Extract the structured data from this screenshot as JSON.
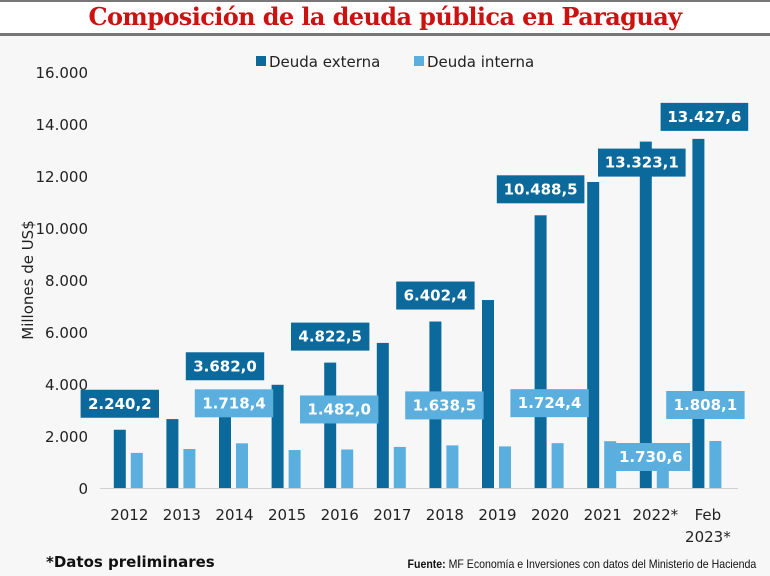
{
  "header": {
    "title": "Composición de la deuda pública en Paraguay"
  },
  "colors": {
    "external": "#0b6a9b",
    "internal": "#5aafdf",
    "title": "#cc1111"
  },
  "chart_data": {
    "type": "bar",
    "title": "Composición de la deuda pública en Paraguay",
    "xlabel": "",
    "ylabel": "Millones de US$",
    "ylim": [
      0,
      16000
    ],
    "yticks": [
      0,
      2000,
      4000,
      6000,
      8000,
      10000,
      12000,
      14000,
      16000
    ],
    "ytick_labels": [
      "0",
      "2.000",
      "4.000",
      "6.000",
      "8.000",
      "10.000",
      "12.000",
      "14.000",
      "16.000"
    ],
    "grid": false,
    "legend_position": "top-center",
    "categories": [
      "2012",
      "2013",
      "2014",
      "2015",
      "2016",
      "2017",
      "2018",
      "2019",
      "2020",
      "2021",
      "2022*",
      "Feb 2023*"
    ],
    "series": [
      {
        "name": "Deuda externa",
        "values": [
          2240.2,
          2650,
          3682.0,
          3970,
          4822.5,
          5580,
          6402.4,
          7230,
          10488.5,
          11770,
          13323.1,
          13427.6
        ],
        "labels": [
          "2.240,2",
          null,
          "3.682,0",
          null,
          "4.822,5",
          null,
          "6.402,4",
          null,
          "10.488,5",
          null,
          "13.323,1",
          "13.427,6"
        ]
      },
      {
        "name": "Deuda interna",
        "values": [
          1350,
          1500,
          1718.4,
          1460,
          1482.0,
          1580,
          1638.5,
          1600,
          1724.4,
          1800,
          1730.6,
          1808.1
        ],
        "labels": [
          null,
          null,
          "1.718,4",
          null,
          "1.482,0",
          null,
          "1.638,5",
          null,
          "1.724,4",
          null,
          "1.730,6",
          "1.808,1"
        ]
      }
    ]
  },
  "footer": {
    "note": "*Datos preliminares",
    "source_label": "Fuente:",
    "source_text": " MF Economía e Inversiones con datos del Ministerio de Hacienda"
  }
}
